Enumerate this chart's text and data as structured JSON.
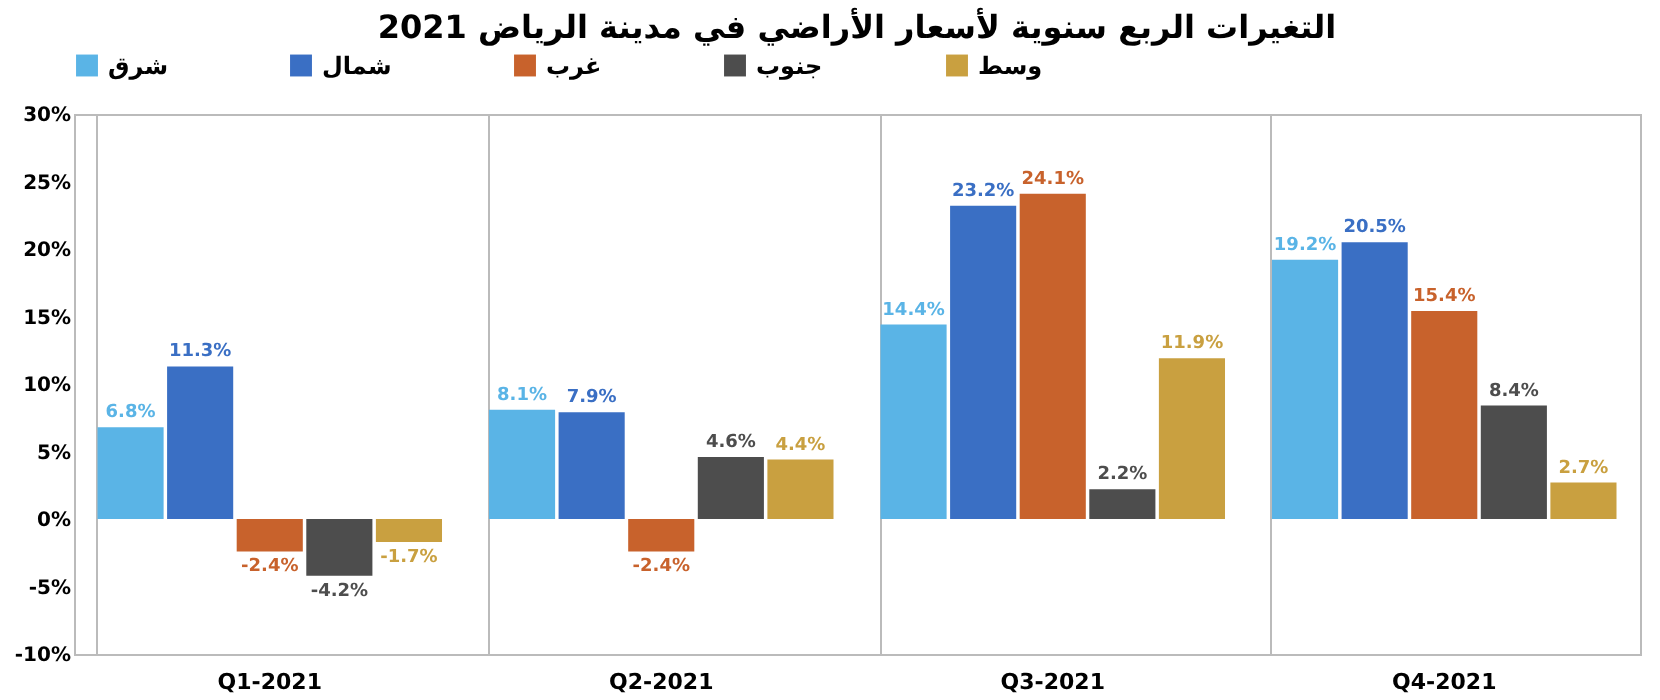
{
  "chart_data": {
    "type": "bar",
    "title": "التغيرات الربع سنوية لأسعار الأراضي في مدينة الرياض 2021",
    "categories": [
      "Q1-2021",
      "Q2-2021",
      "Q3-2021",
      "Q4-2021"
    ],
    "series": [
      {
        "name": "شرق",
        "color": "#5ab4e6",
        "values": [
          6.8,
          8.1,
          14.4,
          19.2
        ],
        "value_labels": [
          "6.8%",
          "8.1%",
          "14.4%",
          "19.2%"
        ]
      },
      {
        "name": "شمال",
        "color": "#3a6fc4",
        "values": [
          11.3,
          7.9,
          23.2,
          20.5
        ],
        "value_labels": [
          "11.3%",
          "7.9%",
          "23.2%",
          "20.5%"
        ]
      },
      {
        "name": "غرب",
        "color": "#c8622c",
        "values": [
          -2.4,
          -2.4,
          24.1,
          15.4
        ],
        "value_labels": [
          "-2.4%",
          "-2.4%",
          "24.1%",
          "15.4%"
        ]
      },
      {
        "name": "جنوب",
        "color": "#4d4d4d",
        "values": [
          -4.2,
          4.6,
          2.2,
          8.4
        ],
        "value_labels": [
          "-4.2%",
          "4.6%",
          "2.2%",
          "8.4%"
        ]
      },
      {
        "name": "وسط",
        "color": "#c9a040",
        "values": [
          -1.7,
          4.4,
          11.9,
          2.7
        ],
        "value_labels": [
          "-1.7%",
          "4.4%",
          "11.9%",
          "2.7%"
        ]
      }
    ],
    "ylim": [
      -10,
      30
    ],
    "yticks": [
      {
        "value": -10,
        "label": "-10%"
      },
      {
        "value": -5,
        "label": "-5%"
      },
      {
        "value": 0,
        "label": "0%"
      },
      {
        "value": 5,
        "label": "5%"
      },
      {
        "value": 10,
        "label": "10%"
      },
      {
        "value": 15,
        "label": "15%"
      },
      {
        "value": 20,
        "label": "20%"
      },
      {
        "value": 25,
        "label": "25%"
      },
      {
        "value": 30,
        "label": "30%"
      }
    ],
    "grid": "x",
    "legend": "top"
  }
}
